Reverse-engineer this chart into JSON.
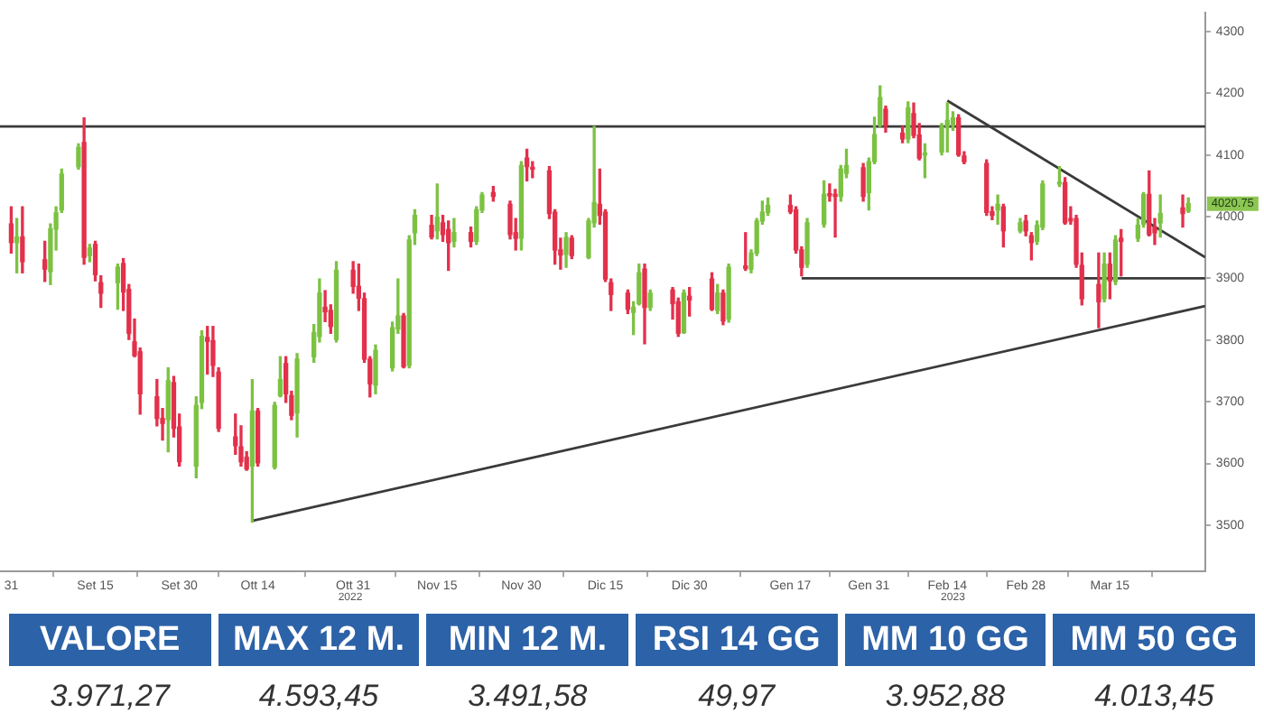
{
  "chart_data": [
    {
      "type": "candlestick",
      "x": [
        "2022-08-31",
        "2022-09-01",
        "2022-09-02",
        "2022-09-06",
        "2022-09-07",
        "2022-09-08",
        "2022-09-09",
        "2022-09-12",
        "2022-09-13",
        "2022-09-14",
        "2022-09-15",
        "2022-09-16",
        "2022-09-19",
        "2022-09-20",
        "2022-09-21",
        "2022-09-22",
        "2022-09-23",
        "2022-09-26",
        "2022-09-27",
        "2022-09-28",
        "2022-09-29",
        "2022-09-30",
        "2022-10-03",
        "2022-10-04",
        "2022-10-05",
        "2022-10-06",
        "2022-10-07",
        "2022-10-10",
        "2022-10-11",
        "2022-10-12",
        "2022-10-13",
        "2022-10-14",
        "2022-10-17",
        "2022-10-18",
        "2022-10-19",
        "2022-10-20",
        "2022-10-21",
        "2022-10-24",
        "2022-10-25",
        "2022-10-26",
        "2022-10-27",
        "2022-10-28",
        "2022-10-31",
        "2022-11-01",
        "2022-11-02",
        "2022-11-03",
        "2022-11-04",
        "2022-11-07",
        "2022-11-08",
        "2022-11-09",
        "2022-11-10",
        "2022-11-11",
        "2022-11-14",
        "2022-11-15",
        "2022-11-16",
        "2022-11-17",
        "2022-11-18",
        "2022-11-21",
        "2022-11-22",
        "2022-11-23",
        "2022-11-25",
        "2022-11-28",
        "2022-11-29",
        "2022-11-30",
        "2022-12-01",
        "2022-12-02",
        "2022-12-05",
        "2022-12-06",
        "2022-12-07",
        "2022-12-08",
        "2022-12-09",
        "2022-12-12",
        "2022-12-13",
        "2022-12-14",
        "2022-12-15",
        "2022-12-16",
        "2022-12-19",
        "2022-12-20",
        "2022-12-21",
        "2022-12-22",
        "2022-12-23",
        "2022-12-27",
        "2022-12-28",
        "2022-12-29",
        "2022-12-30",
        "2023-01-03",
        "2023-01-04",
        "2023-01-05",
        "2023-01-06",
        "2023-01-09",
        "2023-01-10",
        "2023-01-11",
        "2023-01-12",
        "2023-01-13",
        "2023-01-17",
        "2023-01-18",
        "2023-01-19",
        "2023-01-20",
        "2023-01-23",
        "2023-01-24",
        "2023-01-25",
        "2023-01-26",
        "2023-01-27",
        "2023-01-30",
        "2023-01-31",
        "2023-02-01",
        "2023-02-02",
        "2023-02-03",
        "2023-02-06",
        "2023-02-07",
        "2023-02-08",
        "2023-02-09",
        "2023-02-10",
        "2023-02-13",
        "2023-02-14",
        "2023-02-15",
        "2023-02-16",
        "2023-02-17",
        "2023-02-21",
        "2023-02-22",
        "2023-02-23",
        "2023-02-24",
        "2023-02-27",
        "2023-02-28",
        "2023-03-01",
        "2023-03-02",
        "2023-03-03",
        "2023-03-06",
        "2023-03-07",
        "2023-03-08",
        "2023-03-09",
        "2023-03-10",
        "2023-03-13",
        "2023-03-14",
        "2023-03-15",
        "2023-03-16",
        "2023-03-17",
        "2023-03-20",
        "2023-03-21",
        "2023-03-22",
        "2023-03-23",
        "2023-03-24",
        "2023-03-28",
        "2023-03-29"
      ],
      "ohlc": [
        [
          3988,
          4016,
          3941,
          3958
        ],
        [
          3958,
          3997,
          3909,
          3967
        ],
        [
          3967,
          4016,
          3909,
          3927
        ],
        [
          3930,
          3960,
          3895,
          3915
        ],
        [
          3911,
          3988,
          3890,
          3980
        ],
        [
          3980,
          4016,
          3946,
          4006
        ],
        [
          4011,
          4077,
          4007,
          4069
        ],
        [
          4081,
          4118,
          4077,
          4112
        ],
        [
          4120,
          4160,
          3923,
          3934
        ],
        [
          3937,
          3955,
          3927,
          3949
        ],
        [
          3955,
          3960,
          3896,
          3906
        ],
        [
          3893,
          3904,
          3853,
          3876
        ],
        [
          3893,
          3923,
          3850,
          3918
        ],
        [
          3924,
          3932,
          3848,
          3878
        ],
        [
          3882,
          3890,
          3801,
          3811
        ],
        [
          3797,
          3834,
          3773,
          3775
        ],
        [
          3781,
          3787,
          3680,
          3713
        ],
        [
          3708,
          3736,
          3661,
          3673
        ],
        [
          3673,
          3689,
          3638,
          3665
        ],
        [
          3671,
          3755,
          3619,
          3734
        ],
        [
          3731,
          3741,
          3643,
          3657
        ],
        [
          3659,
          3680,
          3596,
          3603
        ],
        [
          3596,
          3708,
          3577,
          3694
        ],
        [
          3699,
          3815,
          3689,
          3806
        ],
        [
          3804,
          3822,
          3745,
          3798
        ],
        [
          3799,
          3822,
          3741,
          3759
        ],
        [
          3748,
          3755,
          3652,
          3657
        ],
        [
          3643,
          3680,
          3615,
          3629
        ],
        [
          3627,
          3661,
          3596,
          3603
        ],
        [
          3610,
          3619,
          3589,
          3591
        ],
        [
          3596,
          3736,
          3505,
          3685
        ],
        [
          3685,
          3689,
          3596,
          3601
        ],
        [
          3594,
          3699,
          3591,
          3694
        ],
        [
          3710,
          3773,
          3708,
          3736
        ],
        [
          3762,
          3773,
          3699,
          3713
        ],
        [
          3710,
          3717,
          3671,
          3678
        ],
        [
          3682,
          3778,
          3643,
          3769
        ],
        [
          3773,
          3825,
          3764,
          3812
        ],
        [
          3806,
          3899,
          3797,
          3876
        ],
        [
          3853,
          3880,
          3830,
          3846
        ],
        [
          3848,
          3857,
          3811,
          3822
        ],
        [
          3801,
          3927,
          3797,
          3913
        ],
        [
          3913,
          3927,
          3876,
          3887
        ],
        [
          3887,
          3923,
          3848,
          3868
        ],
        [
          3867,
          3876,
          3764,
          3769
        ],
        [
          3769,
          3773,
          3708,
          3729
        ],
        [
          3727,
          3792,
          3713,
          3783
        ],
        [
          3755,
          3829,
          3750,
          3820
        ],
        [
          3818,
          3899,
          3811,
          3839
        ],
        [
          3839,
          3843,
          3755,
          3757
        ],
        [
          3759,
          3969,
          3755,
          3962
        ],
        [
          3974,
          4011,
          3955,
          4002
        ],
        [
          3986,
          4002,
          3964,
          3967
        ],
        [
          3977,
          4053,
          3964,
          3999
        ],
        [
          3990,
          4002,
          3960,
          3971
        ],
        [
          3979,
          3993,
          3913,
          3958
        ],
        [
          3960,
          3997,
          3951,
          3974
        ],
        [
          3974,
          3983,
          3951,
          3960
        ],
        [
          3960,
          4016,
          3955,
          4011
        ],
        [
          4011,
          4039,
          4007,
          4035
        ],
        [
          4039,
          4049,
          4025,
          4033
        ],
        [
          4020,
          4025,
          3964,
          3971
        ],
        [
          3974,
          3997,
          3946,
          3965
        ],
        [
          3965,
          4089,
          3946,
          4083
        ],
        [
          4095,
          4109,
          4058,
          4081
        ],
        [
          4079,
          4089,
          4063,
          4077
        ],
        [
          4074,
          4081,
          3997,
          4005
        ],
        [
          4007,
          4011,
          3923,
          3946
        ],
        [
          3946,
          3965,
          3915,
          3938
        ],
        [
          3939,
          3974,
          3918,
          3966
        ],
        [
          3965,
          3969,
          3932,
          3937
        ],
        [
          3934,
          3997,
          3932,
          3993
        ],
        [
          3990,
          4146,
          3983,
          4023
        ],
        [
          4020,
          4077,
          3988,
          4002
        ],
        [
          4007,
          4011,
          3895,
          3899
        ],
        [
          3893,
          3899,
          3848,
          3874
        ],
        [
          3876,
          3881,
          3843,
          3850
        ],
        [
          3845,
          3862,
          3809,
          3853
        ],
        [
          3859,
          3923,
          3857,
          3909
        ],
        [
          3915,
          3923,
          3794,
          3853
        ],
        [
          3853,
          3881,
          3848,
          3876
        ],
        [
          3881,
          3885,
          3834,
          3859
        ],
        [
          3862,
          3868,
          3806,
          3811
        ],
        [
          3812,
          3881,
          3811,
          3876
        ],
        [
          3871,
          3885,
          3839,
          3865
        ],
        [
          3899,
          3909,
          3848,
          3850
        ],
        [
          3848,
          3890,
          3843,
          3876
        ],
        [
          3876,
          3881,
          3825,
          3831
        ],
        [
          3834,
          3923,
          3829,
          3918
        ],
        [
          3920,
          3974,
          3913,
          3916
        ],
        [
          3915,
          3946,
          3909,
          3941
        ],
        [
          3941,
          3997,
          3937,
          3993
        ],
        [
          3993,
          4025,
          3988,
          4007
        ],
        [
          4007,
          4030,
          4002,
          4018
        ],
        [
          4018,
          4035,
          4005,
          4008
        ],
        [
          4011,
          4016,
          3941,
          3946
        ],
        [
          3946,
          3951,
          3904,
          3918
        ],
        [
          3923,
          3997,
          3918,
          3990
        ],
        [
          3988,
          4058,
          3983,
          4036
        ],
        [
          4037,
          4053,
          4025,
          4034
        ],
        [
          4036,
          4044,
          3967,
          4033
        ],
        [
          4033,
          4083,
          4025,
          4077
        ],
        [
          4070,
          4109,
          4063,
          4083
        ],
        [
          4079,
          4086,
          4025,
          4033
        ],
        [
          4039,
          4095,
          4011,
          4089
        ],
        [
          4089,
          4161,
          4086,
          4133
        ],
        [
          4148,
          4212,
          4146,
          4193
        ],
        [
          4174,
          4179,
          4137,
          4148
        ],
        [
          4135,
          4146,
          4120,
          4126
        ],
        [
          4126,
          4186,
          4120,
          4176
        ],
        [
          4167,
          4184,
          4128,
          4132
        ],
        [
          4132,
          4151,
          4092,
          4095
        ],
        [
          4100,
          4118,
          4063,
          4102
        ],
        [
          4105,
          4151,
          4100,
          4146
        ],
        [
          4146,
          4184,
          4105,
          4156
        ],
        [
          4148,
          4170,
          4140,
          4160
        ],
        [
          4160,
          4165,
          4098,
          4100
        ],
        [
          4098,
          4105,
          4086,
          4089
        ],
        [
          4086,
          4092,
          4002,
          4007
        ],
        [
          4008,
          4016,
          3995,
          4002
        ],
        [
          4011,
          4035,
          3988,
          4020
        ],
        [
          4016,
          4020,
          3951,
          3977
        ],
        [
          3977,
          3997,
          3974,
          3990
        ],
        [
          3993,
          4002,
          3969,
          3977
        ],
        [
          3969,
          3974,
          3930,
          3958
        ],
        [
          3960,
          3993,
          3955,
          3986
        ],
        [
          3983,
          4058,
          3979,
          4053
        ],
        [
          4053,
          4081,
          4049,
          4055
        ],
        [
          4055,
          4063,
          3988,
          3990
        ],
        [
          3997,
          4016,
          3988,
          3993
        ],
        [
          3997,
          4002,
          3918,
          3923
        ],
        [
          3921,
          3941,
          3857,
          3867
        ],
        [
          3890,
          3941,
          3820,
          3862
        ],
        [
          3867,
          3941,
          3862,
          3923
        ],
        [
          3923,
          3941,
          3867,
          3896
        ],
        [
          3895,
          3969,
          3890,
          3962
        ],
        [
          3965,
          3979,
          3904,
          3960
        ],
        [
          3965,
          3997,
          3960,
          3986
        ],
        [
          3988,
          4039,
          3983,
          4036
        ],
        [
          4036,
          4074,
          3969,
          3971
        ],
        [
          3983,
          3997,
          3955,
          3974
        ],
        [
          3990,
          4035,
          3967,
          4005
        ],
        [
          4014,
          4035,
          3983,
          4005
        ],
        [
          4009,
          4030,
          4007,
          4021
        ]
      ],
      "colors": [
        "#e3304b",
        "#7cc242",
        "#e3304b",
        "#e3304b",
        "#7cc242",
        "#7cc242",
        "#7cc242",
        "#7cc242",
        "#e3304b",
        "#7cc242",
        "#e3304b",
        "#e3304b",
        "#7cc242",
        "#e3304b",
        "#e3304b",
        "#e3304b",
        "#e3304b",
        "#e3304b",
        "#e3304b",
        "#7cc242",
        "#e3304b",
        "#e3304b",
        "#7cc242",
        "#7cc242",
        "#e3304b",
        "#e3304b",
        "#e3304b",
        "#e3304b",
        "#e3304b",
        "#e3304b",
        "#7cc242",
        "#e3304b",
        "#7cc242",
        "#7cc242",
        "#e3304b",
        "#e3304b",
        "#7cc242",
        "#7cc242",
        "#7cc242",
        "#e3304b",
        "#e3304b",
        "#7cc242",
        "#e3304b",
        "#e3304b",
        "#e3304b",
        "#e3304b",
        "#7cc242",
        "#7cc242",
        "#7cc242",
        "#e3304b",
        "#7cc242",
        "#7cc242",
        "#e3304b",
        "#7cc242",
        "#e3304b",
        "#e3304b",
        "#7cc242",
        "#e3304b",
        "#7cc242",
        "#7cc242",
        "#e3304b",
        "#e3304b",
        "#e3304b",
        "#7cc242",
        "#e3304b",
        "#e3304b",
        "#e3304b",
        "#e3304b",
        "#e3304b",
        "#7cc242",
        "#e3304b",
        "#7cc242",
        "#7cc242",
        "#e3304b",
        "#e3304b",
        "#e3304b",
        "#e3304b",
        "#7cc242",
        "#7cc242",
        "#e3304b",
        "#7cc242",
        "#e3304b",
        "#e3304b",
        "#7cc242",
        "#e3304b",
        "#e3304b",
        "#7cc242",
        "#e3304b",
        "#7cc242",
        "#e3304b",
        "#7cc242",
        "#7cc242",
        "#7cc242",
        "#7cc242",
        "#e3304b",
        "#e3304b",
        "#e3304b",
        "#7cc242",
        "#7cc242",
        "#e3304b",
        "#e3304b",
        "#7cc242",
        "#7cc242",
        "#e3304b",
        "#7cc242",
        "#7cc242",
        "#7cc242",
        "#e3304b",
        "#e3304b",
        "#7cc242",
        "#e3304b",
        "#e3304b",
        "#7cc242",
        "#7cc242",
        "#7cc242",
        "#7cc242",
        "#e3304b",
        "#e3304b",
        "#e3304b",
        "#e3304b",
        "#7cc242",
        "#e3304b",
        "#7cc242",
        "#e3304b",
        "#e3304b",
        "#7cc242",
        "#7cc242",
        "#7cc242",
        "#e3304b",
        "#e3304b",
        "#e3304b",
        "#e3304b",
        "#e3304b",
        "#7cc242",
        "#e3304b",
        "#7cc242",
        "#e3304b",
        "#7cc242",
        "#7cc242",
        "#e3304b",
        "#e3304b",
        "#7cc242",
        "#e3304b",
        "#7cc242"
      ],
      "series": [
        {
          "type": "line",
          "color": "#3a3a3a",
          "x": [
            "2023-01-19",
            "2023-04-01"
          ],
          "values": [
            3900,
            3900
          ]
        },
        {
          "type": "line",
          "color": "#3a3a3a",
          "x": [
            "2023-02-14",
            "2023-04-01"
          ],
          "values": [
            4188,
            3934
          ]
        },
        {
          "type": "line",
          "color": "#3a3a3a",
          "x": [
            "2022-10-13",
            "2023-04-01"
          ],
          "values": [
            3507,
            3855
          ]
        }
      ],
      "ref_lines": [
        {
          "axis": "y",
          "value": 4146,
          "color": "#3a3a3a"
        }
      ],
      "annotations": [
        "2022",
        "2023",
        "4020.75"
      ],
      "xlim": [
        "2022-08-29",
        "2023-04-01"
      ],
      "xticks": [
        {
          "value": "2022-08-31",
          "label": "31"
        },
        {
          "value": "2022-09-15",
          "label": "Set 15"
        },
        {
          "value": "2022-09-30",
          "label": "Set 30"
        },
        {
          "value": "2022-10-14",
          "label": "Ott 14"
        },
        {
          "value": "2022-10-31",
          "label": "Ott 31"
        },
        {
          "value": "2022-11-15",
          "label": "Nov 15"
        },
        {
          "value": "2022-11-30",
          "label": "Nov 30"
        },
        {
          "value": "2022-12-15",
          "label": "Dic 15"
        },
        {
          "value": "2022-12-30",
          "label": "Dic 30"
        },
        {
          "value": "2023-01-17",
          "label": "Gen 17"
        },
        {
          "value": "2023-01-31",
          "label": "Gen 31"
        },
        {
          "value": "2023-02-14",
          "label": "Feb 14"
        },
        {
          "value": "2023-02-28",
          "label": "Feb 28"
        },
        {
          "value": "2023-03-15",
          "label": "Mar 15"
        }
      ],
      "ylim": [
        3425,
        4330
      ],
      "yticks": [
        3500,
        3600,
        3700,
        3800,
        3900,
        4000,
        4100,
        4200,
        4300
      ]
    },
    {
      "type": "other",
      "color": "#2c62a7",
      "categories": [
        "VALORE",
        "MAX 12 M.",
        "MIN 12 M.",
        "RSI 14 GG",
        "MM 10 GG",
        "MM 50 GG"
      ],
      "value_labels": [
        "3.971,27",
        "4.593,45",
        "3.491,58",
        "49,97",
        "3.952,88",
        "4.013,45"
      ]
    }
  ]
}
